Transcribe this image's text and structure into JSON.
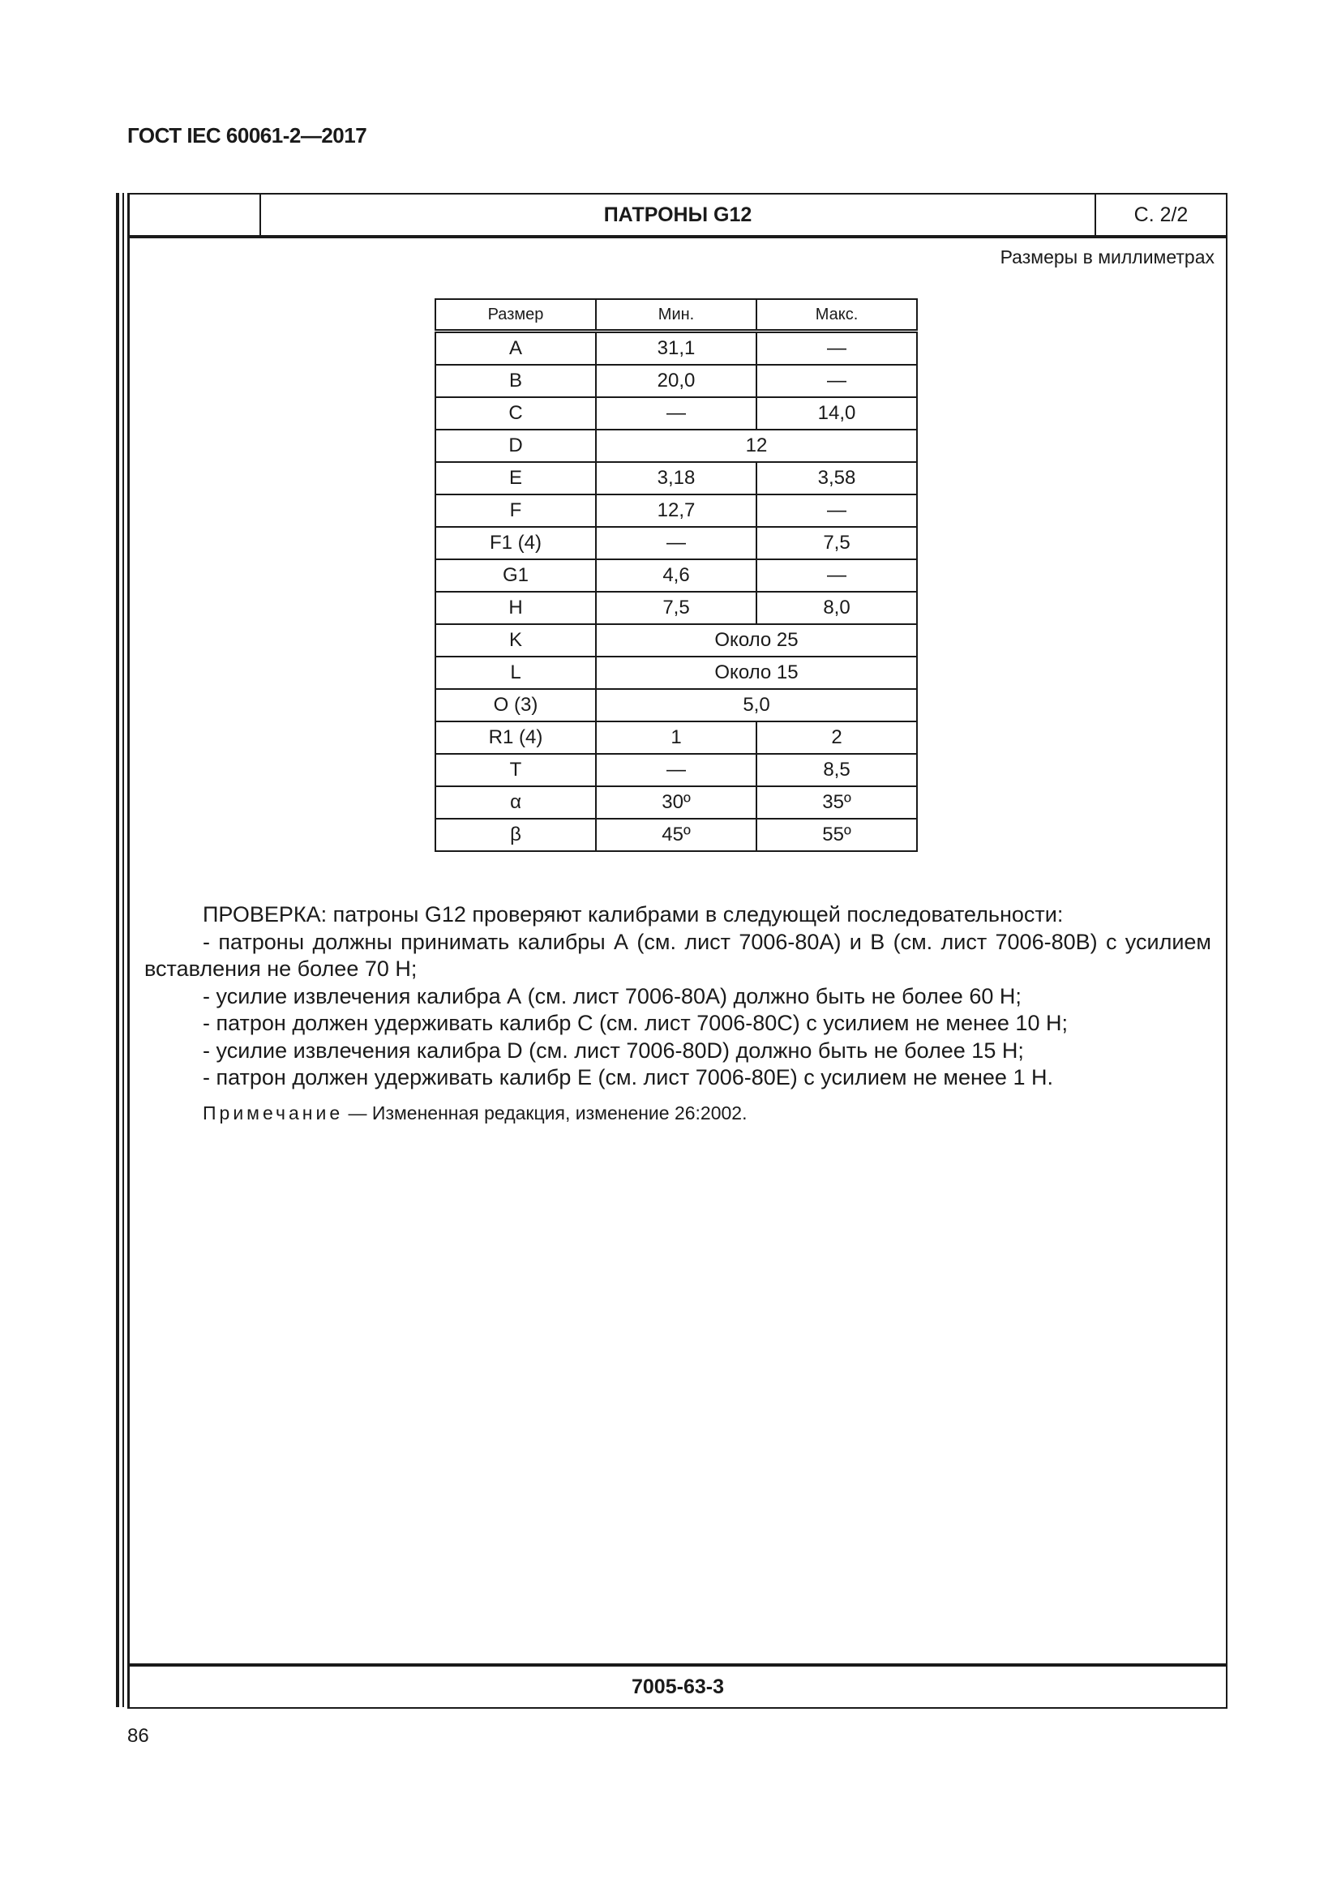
{
  "document_code": "ГОСТ IEC 60061-2—2017",
  "sheet": {
    "title": "ПАТРОНЫ G12",
    "page": "С. 2/2",
    "units_note": "Размеры в миллиметрах",
    "sheet_number": "7005-63-3"
  },
  "table": {
    "headers": [
      "Размер",
      "Мин.",
      "Макс."
    ],
    "rows": [
      {
        "dim": "A",
        "min": "31,1",
        "max": "—"
      },
      {
        "dim": "B",
        "min": "20,0",
        "max": "—"
      },
      {
        "dim": "C",
        "min": "—",
        "max": "14,0"
      },
      {
        "dim": "D",
        "both": "12"
      },
      {
        "dim": "E",
        "min": "3,18",
        "max": "3,58"
      },
      {
        "dim": "F",
        "min": "12,7",
        "max": "—"
      },
      {
        "dim": "F1 (4)",
        "min": "—",
        "max": "7,5"
      },
      {
        "dim": "G1",
        "min": "4,6",
        "max": "—"
      },
      {
        "dim": "H",
        "min": "7,5",
        "max": "8,0"
      },
      {
        "dim": "K",
        "both": "Около 25"
      },
      {
        "dim": "L",
        "both": "Около 15"
      },
      {
        "dim": "O (3)",
        "both": "5,0"
      },
      {
        "dim": "R1 (4)",
        "min": "1",
        "max": "2"
      },
      {
        "dim": "T",
        "min": "—",
        "max": "8,5"
      },
      {
        "dim": "α",
        "min": "30º",
        "max": "35º"
      },
      {
        "dim": "β",
        "min": "45º",
        "max": "55º"
      }
    ]
  },
  "text": {
    "intro": "ПРОВЕРКА: патроны G12 проверяют калибрами в следующей последовательности:",
    "items": [
      "- патроны должны принимать калибры А (см. лист 7006-80А) и В (см. лист 7006-80В) с усилием вставления не более 70 Н;",
      "- усилие извлечения калибра А (см. лист 7006-80А) должно быть не более 60 Н;",
      "- патрон должен удерживать калибр С (см. лист 7006-80С) с усилием не менее 10 Н;",
      "- усилие извлечения калибра D (см. лист 7006-80D) должно быть не более 15 Н;",
      "- патрон должен удерживать калибр Е (см. лист 7006-80Е) с усилием не менее 1 Н."
    ],
    "note_label": "Примечание",
    "note_text": " — Измененная редакция, изменение 26:2002."
  },
  "page_number": "86"
}
